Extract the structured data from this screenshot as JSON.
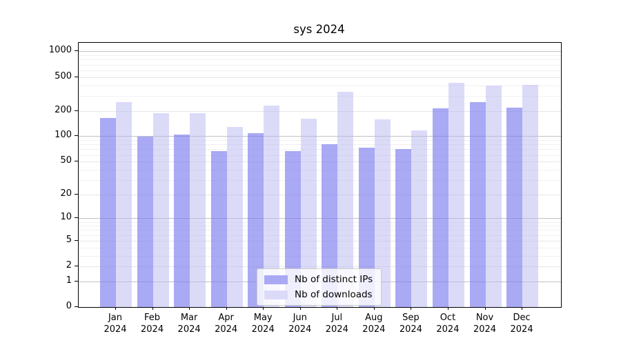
{
  "chart_data": {
    "type": "bar",
    "title": "sys 2024",
    "scale": "log1p",
    "grid": true,
    "legend_position": "lower center",
    "categories": [
      "Jan",
      "Feb",
      "Mar",
      "Apr",
      "May",
      "Jun",
      "Jul",
      "Aug",
      "Sep",
      "Oct",
      "Nov",
      "Dec"
    ],
    "category_sublabel": "2024",
    "series": [
      {
        "name": "Nb of distinct IPs",
        "values": [
          165,
          100,
          104,
          67,
          109,
          67,
          80,
          73,
          70,
          213,
          252,
          216
        ]
      },
      {
        "name": "Nb of downloads",
        "values": [
          252,
          186,
          188,
          128,
          229,
          161,
          334,
          158,
          118,
          426,
          396,
          403
        ]
      }
    ],
    "yticks": [
      1000,
      500,
      200,
      100,
      50,
      20,
      10,
      5,
      2,
      1,
      0
    ],
    "ylim": [
      0,
      1250
    ],
    "xlabel": "",
    "ylabel": ""
  },
  "colors": {
    "bar_ips": "rgba(125,125,238,0.66)",
    "bar_downloads": "rgba(183,183,241,0.5)",
    "legend_swatch_ips": "#a9a9f4",
    "legend_swatch_downloads": "#dbdbf8",
    "grid_major": "#c2c2c2",
    "grid_mid": "#e6e6e6",
    "grid_minor": "#f1f1f1",
    "axis": "#000000"
  }
}
